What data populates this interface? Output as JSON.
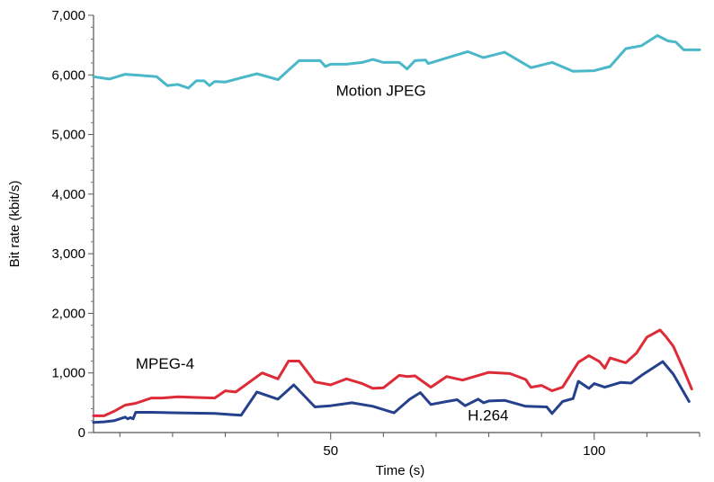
{
  "chart_data": {
    "type": "line",
    "title": "",
    "xlabel": "Time (s)",
    "ylabel": "Bit rate (kbit/s)",
    "xlim": [
      5,
      120
    ],
    "ylim": [
      0,
      7000
    ],
    "x_ticks": [
      {
        "value": 50,
        "label": "50"
      },
      {
        "value": 100,
        "label": "100"
      }
    ],
    "y_ticks": [
      {
        "value": 0,
        "label": "0"
      },
      {
        "value": 1000,
        "label": "1,000"
      },
      {
        "value": 2000,
        "label": "2,000"
      },
      {
        "value": 3000,
        "label": "3,000"
      },
      {
        "value": 4000,
        "label": "4,000"
      },
      {
        "value": 5000,
        "label": "5,000"
      },
      {
        "value": 6000,
        "label": "6,000"
      },
      {
        "value": 7000,
        "label": "7,000"
      }
    ],
    "series": [
      {
        "name": "Motion JPEG",
        "color": "#4bb8c9",
        "label_at": [
          51,
          5650
        ],
        "points": [
          [
            5,
            5970
          ],
          [
            8,
            5930
          ],
          [
            11,
            6010
          ],
          [
            14,
            5990
          ],
          [
            17,
            5970
          ],
          [
            19,
            5820
          ],
          [
            21,
            5840
          ],
          [
            23,
            5780
          ],
          [
            24.5,
            5900
          ],
          [
            26,
            5900
          ],
          [
            27,
            5820
          ],
          [
            28,
            5890
          ],
          [
            30,
            5880
          ],
          [
            33,
            5950
          ],
          [
            36,
            6020
          ],
          [
            40,
            5920
          ],
          [
            44,
            6240
          ],
          [
            48,
            6240
          ],
          [
            49,
            6140
          ],
          [
            50,
            6180
          ],
          [
            53,
            6180
          ],
          [
            56,
            6210
          ],
          [
            58,
            6260
          ],
          [
            60,
            6210
          ],
          [
            63,
            6210
          ],
          [
            64.5,
            6100
          ],
          [
            66,
            6240
          ],
          [
            68,
            6250
          ],
          [
            68.5,
            6190
          ],
          [
            73,
            6310
          ],
          [
            76,
            6390
          ],
          [
            79,
            6290
          ],
          [
            83,
            6380
          ],
          [
            88,
            6120
          ],
          [
            92,
            6210
          ],
          [
            96,
            6060
          ],
          [
            100,
            6070
          ],
          [
            103,
            6140
          ],
          [
            106,
            6440
          ],
          [
            109,
            6490
          ],
          [
            112,
            6660
          ],
          [
            114,
            6570
          ],
          [
            115.5,
            6550
          ],
          [
            117,
            6420
          ],
          [
            120,
            6420
          ]
        ]
      },
      {
        "name": "MPEG-4",
        "color": "#dd2c37",
        "label_at": [
          13,
          1070
        ],
        "points": [
          [
            5,
            280
          ],
          [
            7,
            280
          ],
          [
            9,
            360
          ],
          [
            11,
            460
          ],
          [
            13,
            490
          ],
          [
            16,
            580
          ],
          [
            18,
            580
          ],
          [
            21,
            600
          ],
          [
            24,
            590
          ],
          [
            28,
            580
          ],
          [
            30,
            700
          ],
          [
            32,
            680
          ],
          [
            37,
            1000
          ],
          [
            40,
            900
          ],
          [
            42,
            1200
          ],
          [
            44,
            1200
          ],
          [
            47,
            850
          ],
          [
            50,
            800
          ],
          [
            53,
            900
          ],
          [
            56,
            820
          ],
          [
            58,
            740
          ],
          [
            60,
            750
          ],
          [
            63,
            960
          ],
          [
            64.5,
            940
          ],
          [
            66,
            950
          ],
          [
            69,
            760
          ],
          [
            72,
            940
          ],
          [
            75,
            880
          ],
          [
            80,
            1010
          ],
          [
            84,
            990
          ],
          [
            87,
            890
          ],
          [
            88,
            760
          ],
          [
            90,
            790
          ],
          [
            92,
            700
          ],
          [
            94,
            760
          ],
          [
            97,
            1180
          ],
          [
            99,
            1290
          ],
          [
            101,
            1190
          ],
          [
            102,
            1080
          ],
          [
            103,
            1250
          ],
          [
            106,
            1170
          ],
          [
            108,
            1330
          ],
          [
            110,
            1600
          ],
          [
            112.5,
            1720
          ],
          [
            113.5,
            1620
          ],
          [
            115,
            1450
          ],
          [
            117,
            1050
          ],
          [
            118.5,
            730
          ]
        ]
      },
      {
        "name": "H.264",
        "color": "#25418b",
        "label_at": [
          76,
          200
        ],
        "points": [
          [
            5,
            170
          ],
          [
            7,
            180
          ],
          [
            9,
            200
          ],
          [
            11,
            260
          ],
          [
            11.5,
            230
          ],
          [
            12,
            250
          ],
          [
            12.5,
            230
          ],
          [
            13,
            340
          ],
          [
            16,
            340
          ],
          [
            21,
            330
          ],
          [
            28,
            320
          ],
          [
            33,
            290
          ],
          [
            36,
            680
          ],
          [
            40,
            560
          ],
          [
            43,
            800
          ],
          [
            47,
            430
          ],
          [
            50,
            450
          ],
          [
            54,
            500
          ],
          [
            58,
            440
          ],
          [
            62,
            330
          ],
          [
            65,
            560
          ],
          [
            67,
            670
          ],
          [
            69,
            470
          ],
          [
            72,
            520
          ],
          [
            74,
            550
          ],
          [
            75.5,
            450
          ],
          [
            78,
            560
          ],
          [
            79,
            500
          ],
          [
            80,
            530
          ],
          [
            83,
            540
          ],
          [
            87,
            440
          ],
          [
            91,
            430
          ],
          [
            92,
            320
          ],
          [
            94,
            520
          ],
          [
            96,
            570
          ],
          [
            97,
            860
          ],
          [
            99,
            740
          ],
          [
            100,
            820
          ],
          [
            102,
            760
          ],
          [
            105,
            840
          ],
          [
            107,
            830
          ],
          [
            109,
            960
          ],
          [
            113,
            1190
          ],
          [
            115,
            980
          ],
          [
            118,
            520
          ]
        ]
      }
    ]
  }
}
